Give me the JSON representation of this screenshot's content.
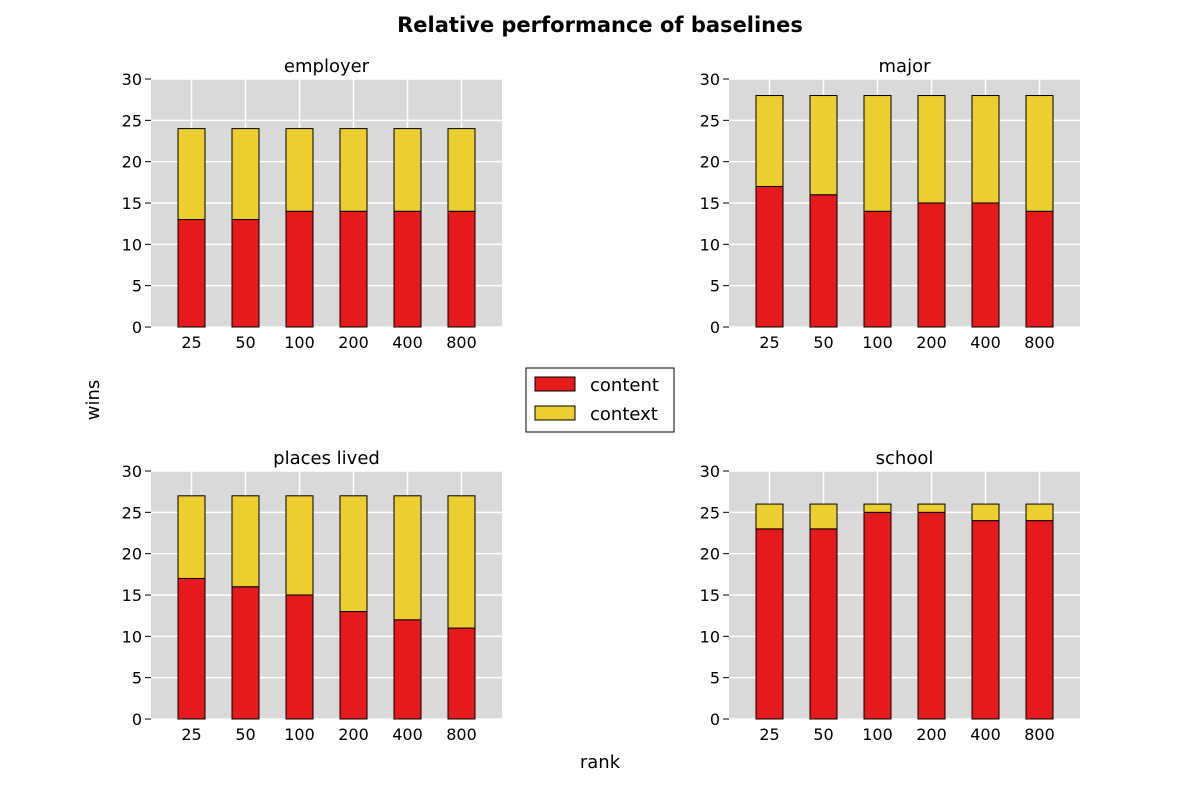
{
  "figure": {
    "title": "Relative performance of baselines",
    "xlabel": "rank",
    "ylabel": "wins"
  },
  "legend": {
    "placement": "center",
    "entries": [
      {
        "label": "content",
        "color": "#e41a1c"
      },
      {
        "label": "context",
        "color": "#ecce31"
      }
    ]
  },
  "colors": {
    "content": "#e41a1c",
    "context": "#ecce31",
    "plot_background": "#d9d9d9",
    "grid": "#ffffff",
    "bar_edge": "#000000"
  },
  "chart_data": [
    {
      "type": "bar",
      "stacked": true,
      "title": "employer",
      "categories": [
        "25",
        "50",
        "100",
        "200",
        "400",
        "800"
      ],
      "series": [
        {
          "name": "content",
          "values": [
            13,
            13,
            14,
            14,
            14,
            14
          ]
        },
        {
          "name": "context",
          "values": [
            11,
            11,
            10,
            10,
            10,
            10
          ]
        }
      ],
      "ylim": [
        0,
        30
      ],
      "yticks": [
        "0",
        "5",
        "10",
        "15",
        "20",
        "25",
        "30"
      ],
      "grid": true
    },
    {
      "type": "bar",
      "stacked": true,
      "title": "major",
      "categories": [
        "25",
        "50",
        "100",
        "200",
        "400",
        "800"
      ],
      "series": [
        {
          "name": "content",
          "values": [
            17,
            16,
            14,
            15,
            15,
            14
          ]
        },
        {
          "name": "context",
          "values": [
            11,
            12,
            14,
            13,
            13,
            14
          ]
        }
      ],
      "ylim": [
        0,
        30
      ],
      "yticks": [
        "0",
        "5",
        "10",
        "15",
        "20",
        "25",
        "30"
      ],
      "grid": true
    },
    {
      "type": "bar",
      "stacked": true,
      "title": "places lived",
      "categories": [
        "25",
        "50",
        "100",
        "200",
        "400",
        "800"
      ],
      "series": [
        {
          "name": "content",
          "values": [
            17,
            16,
            15,
            13,
            12,
            11
          ]
        },
        {
          "name": "context",
          "values": [
            10,
            11,
            12,
            14,
            15,
            16
          ]
        }
      ],
      "ylim": [
        0,
        30
      ],
      "yticks": [
        "0",
        "5",
        "10",
        "15",
        "20",
        "25",
        "30"
      ],
      "grid": true
    },
    {
      "type": "bar",
      "stacked": true,
      "title": "school",
      "categories": [
        "25",
        "50",
        "100",
        "200",
        "400",
        "800"
      ],
      "series": [
        {
          "name": "content",
          "values": [
            23,
            23,
            25,
            25,
            24,
            24
          ]
        },
        {
          "name": "context",
          "values": [
            3,
            3,
            1,
            1,
            2,
            2
          ]
        }
      ],
      "ylim": [
        0,
        30
      ],
      "yticks": [
        "0",
        "5",
        "10",
        "15",
        "20",
        "25",
        "30"
      ],
      "grid": true
    }
  ]
}
